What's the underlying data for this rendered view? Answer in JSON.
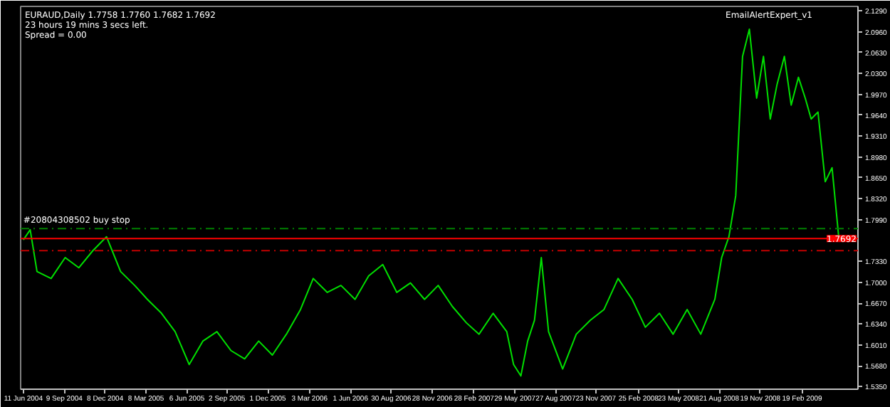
{
  "chart_data": {
    "type": "line",
    "title": "EURAUD,Daily  1.7758 1.7760 1.7682 1.7692",
    "annotations": [
      "23 hours 19 mins 3 secs left.",
      "Spread = 0.00",
      "EmailAlertExpert_v1"
    ],
    "x": [
      "2004-06-11",
      "2004-06-26",
      "2004-07-11",
      "2004-08-11",
      "2004-09-11",
      "2004-10-11",
      "2004-11-11",
      "2004-12-11",
      "2005-01-11",
      "2005-02-11",
      "2005-03-11",
      "2005-04-11",
      "2005-05-11",
      "2005-06-11",
      "2005-07-11",
      "2005-08-11",
      "2005-09-11",
      "2005-10-11",
      "2005-11-11",
      "2005-12-11",
      "2006-01-11",
      "2006-02-11",
      "2006-03-11",
      "2006-04-11",
      "2006-05-11",
      "2006-06-11",
      "2006-07-11",
      "2006-08-11",
      "2006-09-11",
      "2006-10-11",
      "2006-11-11",
      "2006-12-11",
      "2007-01-11",
      "2007-02-11",
      "2007-03-11",
      "2007-04-11",
      "2007-05-11",
      "2007-05-26",
      "2007-06-11",
      "2007-06-26",
      "2007-07-11",
      "2007-07-26",
      "2007-08-11",
      "2007-09-11",
      "2007-10-11",
      "2007-11-11",
      "2007-12-11",
      "2008-01-11",
      "2008-02-11",
      "2008-03-11",
      "2008-04-11",
      "2008-05-11",
      "2008-06-11",
      "2008-07-11",
      "2008-08-11",
      "2008-08-26",
      "2008-09-11",
      "2008-09-26",
      "2008-10-11",
      "2008-10-26",
      "2008-11-11",
      "2008-11-26",
      "2008-12-11",
      "2008-12-26",
      "2009-01-11",
      "2009-01-26",
      "2009-02-11",
      "2009-02-26",
      "2009-03-11",
      "2009-03-26",
      "2009-04-11",
      "2009-04-26",
      "2009-05-11"
    ],
    "series": [
      {
        "color": "#00e000",
        "values": [
          1.767,
          1.783,
          1.717,
          1.706,
          1.739,
          1.723,
          1.75,
          1.772,
          1.717,
          1.695,
          1.673,
          1.651,
          1.622,
          1.57,
          1.607,
          1.622,
          1.592,
          1.579,
          1.607,
          1.585,
          1.618,
          1.657,
          1.706,
          1.684,
          1.695,
          1.673,
          1.71,
          1.728,
          1.684,
          1.699,
          1.673,
          1.695,
          1.662,
          1.636,
          1.618,
          1.651,
          1.622,
          1.57,
          1.552,
          1.607,
          1.64,
          1.739,
          1.622,
          1.563,
          1.618,
          1.64,
          1.657,
          1.706,
          1.673,
          1.629,
          1.651,
          1.618,
          1.657,
          1.618,
          1.673,
          1.739,
          1.772,
          1.837,
          2.057,
          2.1,
          1.991,
          2.057,
          1.958,
          2.013,
          2.057,
          1.98,
          2.024,
          1.991,
          1.958,
          1.969,
          1.859,
          1.881,
          1.769
        ]
      }
    ],
    "xlim": [
      "2004-06-05",
      "2009-06-22"
    ],
    "xticks": [
      {
        "value": "2004-06-11",
        "label": "11 Jun 2004"
      },
      {
        "value": "2004-09-09",
        "label": "9 Sep 2004"
      },
      {
        "value": "2004-12-08",
        "label": "8 Dec 2004"
      },
      {
        "value": "2005-03-08",
        "label": "8 Mar 2005"
      },
      {
        "value": "2005-06-06",
        "label": "6 Jun 2005"
      },
      {
        "value": "2005-09-02",
        "label": "2 Sep 2005"
      },
      {
        "value": "2005-12-01",
        "label": "1 Dec 2005"
      },
      {
        "value": "2006-03-03",
        "label": "3 Mar 2006"
      },
      {
        "value": "2006-06-01",
        "label": "1 Jun 2006"
      },
      {
        "value": "2006-08-30",
        "label": "30 Aug 2006"
      },
      {
        "value": "2006-11-28",
        "label": "28 Nov 2006"
      },
      {
        "value": "2007-02-28",
        "label": "28 Feb 2007"
      },
      {
        "value": "2007-05-29",
        "label": "29 May 2007"
      },
      {
        "value": "2007-08-27",
        "label": "27 Aug 2007"
      },
      {
        "value": "2007-11-23",
        "label": "23 Nov 2007"
      },
      {
        "value": "2008-02-25",
        "label": "25 Feb 2008"
      },
      {
        "value": "2008-05-23",
        "label": "23 May 2008"
      },
      {
        "value": "2008-08-21",
        "label": "21 Aug 2008"
      },
      {
        "value": "2008-11-19",
        "label": "19 Nov 2008"
      },
      {
        "value": "2009-02-19",
        "label": "19 Feb 2009"
      }
    ],
    "ylim": [
      1.531,
      2.136
    ],
    "yticks": [
      {
        "value": 2.129,
        "label": "2.1290"
      },
      {
        "value": 2.096,
        "label": "2.0960"
      },
      {
        "value": 2.063,
        "label": "2.0630"
      },
      {
        "value": 2.03,
        "label": "2.0300"
      },
      {
        "value": 1.997,
        "label": "1.9970"
      },
      {
        "value": 1.964,
        "label": "1.9640"
      },
      {
        "value": 1.931,
        "label": "1.9310"
      },
      {
        "value": 1.898,
        "label": "1.8980"
      },
      {
        "value": 1.865,
        "label": "1.8650"
      },
      {
        "value": 1.832,
        "label": "1.8320"
      },
      {
        "value": 1.799,
        "label": "1.7990"
      },
      {
        "value": 1.733,
        "label": "1.7330"
      },
      {
        "value": 1.7,
        "label": "1.7000"
      },
      {
        "value": 1.667,
        "label": "1.6670"
      },
      {
        "value": 1.634,
        "label": "1.6340"
      },
      {
        "value": 1.601,
        "label": "1.6010"
      },
      {
        "value": 1.568,
        "label": "1.5680"
      },
      {
        "value": 1.535,
        "label": "1.5350"
      }
    ],
    "ref_lines": [
      {
        "axis": "y",
        "value": 1.785,
        "label": "#20804308502 buy stop",
        "color": "#008000",
        "line_style": "dashdot"
      },
      {
        "axis": "y",
        "value": 1.7692,
        "label": "1.7692",
        "color": "#ff0000",
        "line_style": "solid"
      },
      {
        "axis": "y",
        "value": 1.75,
        "color": "#c00000",
        "line_style": "dashdot"
      }
    ],
    "grid": false
  }
}
